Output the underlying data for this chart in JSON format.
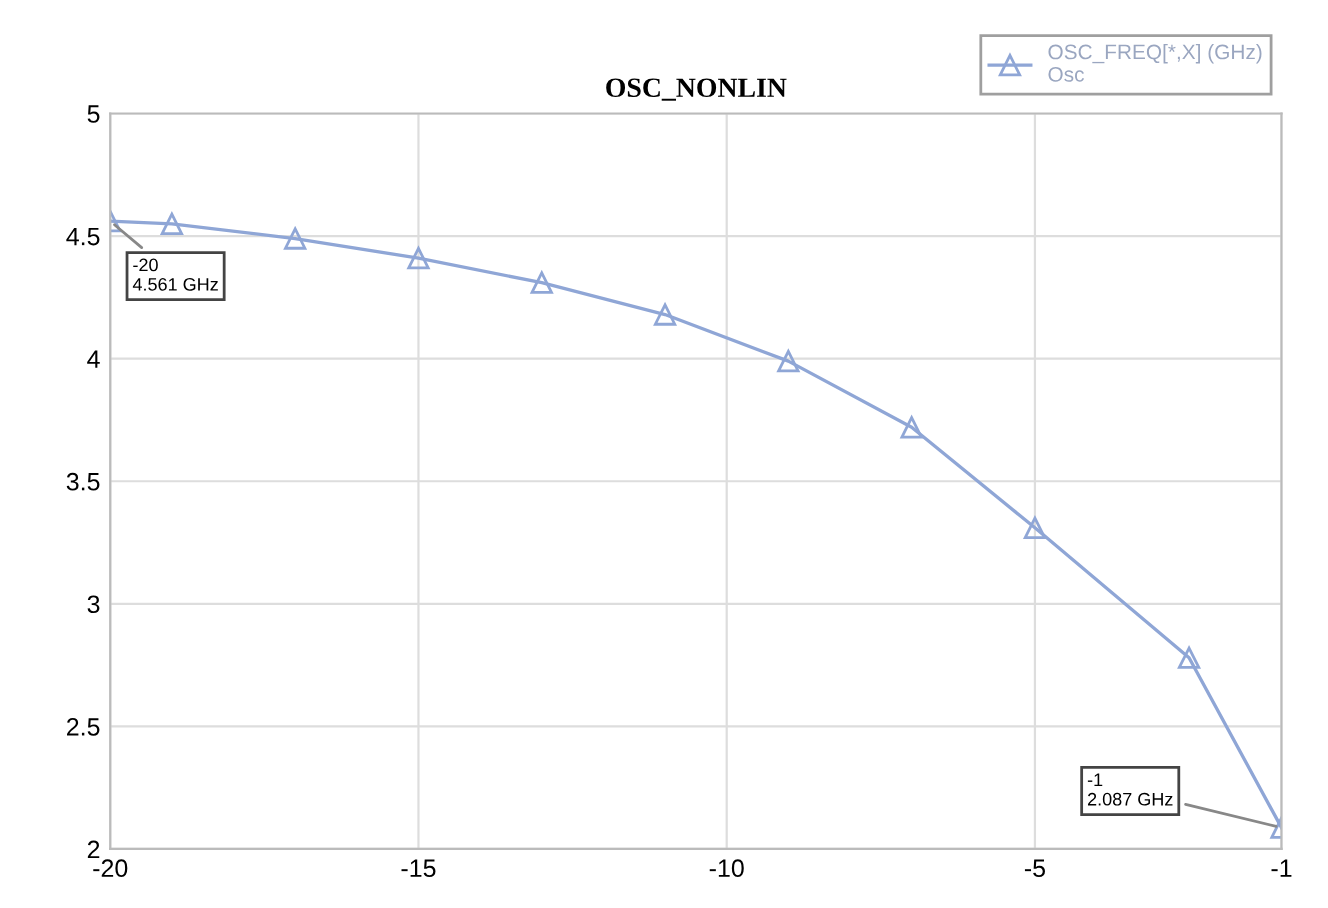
{
  "chart_data": {
    "type": "line",
    "title": "OSC_NONLIN",
    "x": [
      -20,
      -19,
      -17,
      -15,
      -13,
      -11,
      -9,
      -7,
      -5,
      -2.5,
      -1
    ],
    "series": [
      {
        "name": "OSC_FREQ[*,X] (GHz)\nOsc",
        "color": "#8fa6d6",
        "values": [
          4.561,
          4.55,
          4.49,
          4.41,
          4.31,
          4.18,
          3.99,
          3.72,
          3.31,
          2.78,
          2.087
        ]
      }
    ],
    "xlim": [
      -20,
      -1
    ],
    "xticks": [
      -20,
      -15,
      -10,
      -5,
      -1
    ],
    "ylim": [
      2,
      5
    ],
    "yticks": [
      2,
      2.5,
      3,
      3.5,
      4,
      4.5,
      5
    ],
    "annotations": [
      {
        "text": "-20\n4.561 GHz",
        "x": -20,
        "y": 4.561
      },
      {
        "text": "-1\n2.087 GHz",
        "x": -1,
        "y": 2.087
      }
    ],
    "grid": true,
    "legend": "top right",
    "marker": "triangle",
    "line_style": "solid"
  }
}
